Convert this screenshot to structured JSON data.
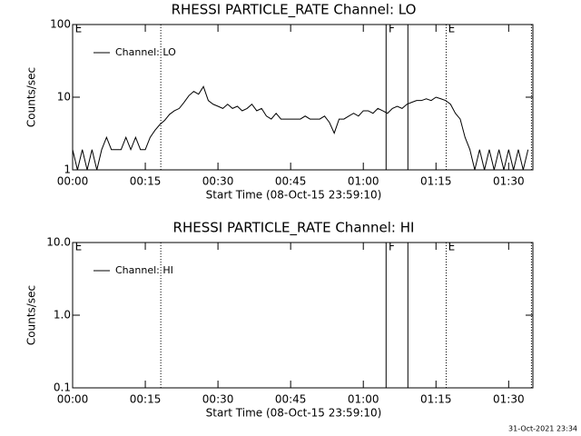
{
  "chart_data": [
    {
      "type": "line",
      "title": "RHESSI PARTICLE_RATE Channel: LO",
      "xlabel": "Start Time (08-Oct-15 23:59:10)",
      "ylabel": "Counts/sec",
      "xlim": [
        0,
        95
      ],
      "xticks": [
        {
          "value": 0,
          "label": "00:00"
        },
        {
          "value": 15,
          "label": "00:15"
        },
        {
          "value": 30,
          "label": "00:30"
        },
        {
          "value": 45,
          "label": "00:45"
        },
        {
          "value": 60,
          "label": "01:00"
        },
        {
          "value": 75,
          "label": "01:15"
        },
        {
          "value": 90,
          "label": "01:30"
        }
      ],
      "ylim": [
        1,
        100
      ],
      "ylog": true,
      "yticks": [
        1,
        10,
        100
      ],
      "x": [
        0,
        1,
        2,
        3,
        4,
        5,
        6,
        7,
        8,
        9,
        10,
        11,
        12,
        13,
        14,
        15,
        16,
        17,
        18,
        19,
        20,
        21,
        22,
        23,
        24,
        25,
        26,
        27,
        28,
        29,
        30,
        31,
        32,
        33,
        34,
        35,
        36,
        37,
        38,
        39,
        40,
        41,
        42,
        43,
        44,
        45,
        46,
        47,
        48,
        49,
        50,
        51,
        52,
        53,
        54,
        55,
        56,
        57,
        58,
        59,
        60,
        61,
        62,
        63,
        64,
        65,
        66,
        67,
        68,
        69,
        70,
        71,
        72,
        73,
        74,
        75,
        76,
        77,
        78,
        79,
        80,
        81,
        82,
        83,
        84,
        85,
        86,
        87,
        88,
        89,
        90,
        91,
        92,
        93,
        94
      ],
      "series": [
        {
          "name": "Channel: LO",
          "color": "#000000",
          "values": [
            1.9,
            1,
            1.9,
            1,
            1.9,
            1,
            1.9,
            2.8,
            1.9,
            1.9,
            1.9,
            2.8,
            1.9,
            2.8,
            1.9,
            1.9,
            2.8,
            3.5,
            4.2,
            4.8,
            5.8,
            6.5,
            7,
            8.5,
            10.5,
            12,
            11,
            14,
            9,
            8,
            7.5,
            7,
            8,
            7,
            7.5,
            6.5,
            7,
            8,
            6.5,
            7,
            5.5,
            5,
            6,
            5,
            5,
            5,
            5,
            5,
            5.5,
            5,
            5,
            5,
            5.5,
            4.5,
            3.2,
            5,
            5,
            5.5,
            6,
            5.5,
            6.5,
            6.5,
            6,
            7,
            6.5,
            6,
            7,
            7.5,
            7,
            8,
            8.5,
            9,
            9,
            9.5,
            9,
            10,
            9.5,
            9,
            8,
            6,
            5,
            2.8,
            1.9,
            1,
            1.9,
            1,
            1.9,
            1,
            1.9,
            1,
            1.9,
            1,
            1.9,
            1,
            1.9
          ]
        }
      ],
      "markers": [
        {
          "x": 18.2,
          "style": "dotted"
        },
        {
          "x": 64.7,
          "style": "solid"
        },
        {
          "x": 69.2,
          "style": "solid"
        },
        {
          "x": 77.1,
          "style": "dotted"
        },
        {
          "x": 94.7,
          "style": "dotted"
        }
      ],
      "annotations": [
        {
          "text": "E",
          "x": 0.5
        },
        {
          "text": "F",
          "x": 65.2
        },
        {
          "text": "E",
          "x": 77.5
        }
      ]
    },
    {
      "type": "line",
      "title": "RHESSI PARTICLE_RATE Channel: HI",
      "xlabel": "Start Time (08-Oct-15 23:59:10)",
      "ylabel": "Counts/sec",
      "xlim": [
        0,
        95
      ],
      "xticks": [
        {
          "value": 0,
          "label": "00:00"
        },
        {
          "value": 15,
          "label": "00:15"
        },
        {
          "value": 30,
          "label": "00:30"
        },
        {
          "value": 45,
          "label": "00:45"
        },
        {
          "value": 60,
          "label": "01:00"
        },
        {
          "value": 75,
          "label": "01:15"
        },
        {
          "value": 90,
          "label": "01:30"
        }
      ],
      "ylim": [
        0.1,
        10
      ],
      "ylog": true,
      "yticks": [
        0.1,
        {
          "value": 1,
          "label": "1.0"
        },
        {
          "value": 10,
          "label": "10.0"
        }
      ],
      "x": [],
      "series": [
        {
          "name": "Channel: HI",
          "color": "#000000",
          "values": []
        }
      ],
      "markers": [
        {
          "x": 18.2,
          "style": "dotted"
        },
        {
          "x": 64.7,
          "style": "solid"
        },
        {
          "x": 69.2,
          "style": "solid"
        },
        {
          "x": 77.1,
          "style": "dotted"
        },
        {
          "x": 94.7,
          "style": "dotted"
        }
      ],
      "annotations": [
        {
          "text": "E",
          "x": 0.5
        },
        {
          "text": "F",
          "x": 65.2
        },
        {
          "text": "E",
          "x": 77.5
        }
      ]
    }
  ],
  "footer": "31-Oct-2021 23:34"
}
